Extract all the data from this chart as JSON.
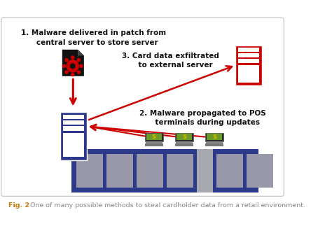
{
  "bg_color": "#ffffff",
  "border_color": "#cccccc",
  "arrow_color": "#cc0000",
  "blue_server_color": "#2d3a8c",
  "red_server_color": "#cc0000",
  "store_blue": "#2d3a8c",
  "store_gray_window": "#9898a8",
  "store_entrance_gray": "#a8a8b0",
  "text1": "1. Malware delivered in patch from\n   central server to store server",
  "text2": "2. Malware propagated to POS\n    terminals during updates",
  "text3": "3. Card data exfiltrated\n    to external server",
  "caption_bold": "Fig. 2",
  "caption_rest": " One of many possible methods to steal cardholder data from a retail environment.",
  "caption_bold_color": "#cc7700",
  "caption_rest_color": "#888888"
}
